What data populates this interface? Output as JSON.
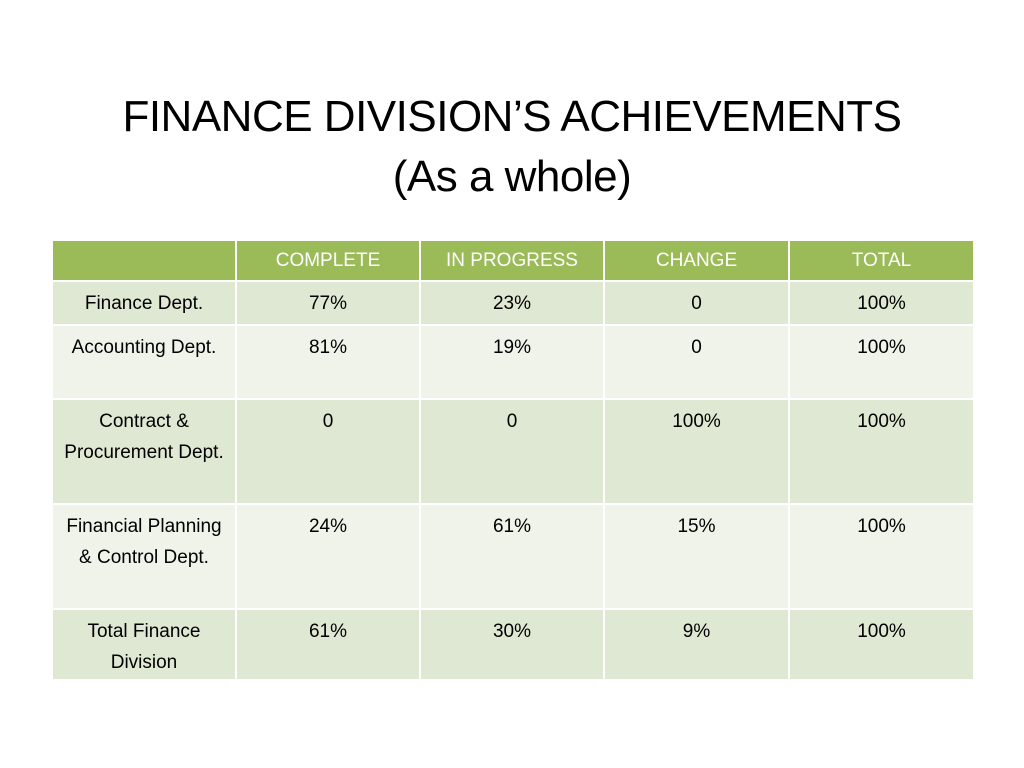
{
  "slide": {
    "title_line1": "FINANCE DIVISION’S ACHIEVEMENTS",
    "title_line2": "(As a whole)"
  },
  "table": {
    "headers": [
      "",
      "COMPLETE",
      "IN PROGRESS",
      "CHANGE",
      "TOTAL"
    ],
    "rows": [
      {
        "label": "Finance  Dept.",
        "complete": "77%",
        "in_progress": "23%",
        "change": "0",
        "total": "100%"
      },
      {
        "label": "Accounting Dept.",
        "complete": "81%",
        "in_progress": "19%",
        "change": "0",
        "total": "100%"
      },
      {
        "label": "Contract & Procurement Dept.",
        "complete": "0",
        "in_progress": "0",
        "change": "100%",
        "total": "100%"
      },
      {
        "label": "Financial Planning & Control Dept.",
        "complete": "24%",
        "in_progress": "61%",
        "change": "15%",
        "total": "100%"
      },
      {
        "label": "Total Finance Division",
        "complete": "61%",
        "in_progress": "30%",
        "change": "9%",
        "total": "100%"
      }
    ]
  },
  "colors": {
    "header_bg": "#9bbb59",
    "row_dark": "#dfe8d2",
    "row_light": "#eff3ea"
  }
}
